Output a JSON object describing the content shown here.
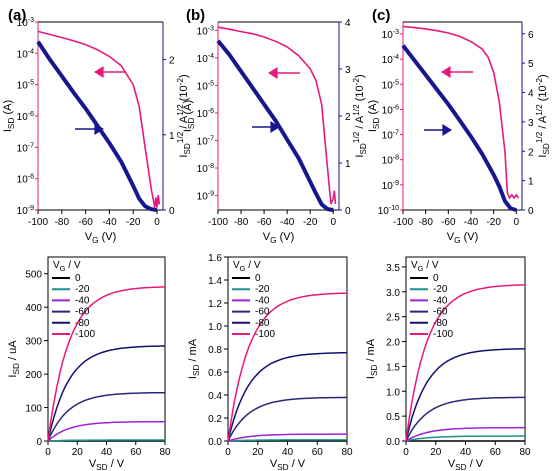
{
  "colors": {
    "transfer": "#e8197d",
    "sqrt": "#16168f",
    "series": [
      "#000000",
      "#1f8f8f",
      "#9b22d6",
      "#27277a",
      "#101070",
      "#e8197d"
    ]
  },
  "chart_data": [
    {
      "type": "line",
      "panel": "(a)",
      "xlabel": "V_G (V)",
      "ylabel": "I_SD (A)",
      "y2label": "I_SD^1/2 / A^1/2 (10^-2)",
      "xlim": [
        -100,
        5
      ],
      "ylim": [
        1e-09,
        0.001
      ],
      "yscale": "log",
      "y2lim": [
        0,
        2.5
      ],
      "xticks": [
        "-100",
        "-80",
        "-60",
        "-40",
        "-20",
        "0"
      ],
      "yticks": [
        "10-9",
        "10-8",
        "10-7",
        "10-6",
        "10-5",
        "10-4",
        "10-3"
      ],
      "y2ticks": [
        "0",
        "1",
        "2"
      ],
      "series": [
        {
          "x": [
            -100,
            -90,
            -80,
            -70,
            -60,
            -50,
            -40,
            -30,
            -20,
            -15,
            -10,
            -5,
            -3,
            -2,
            -1,
            0,
            1,
            2
          ],
          "y": [
            0.0005,
            0.0004,
            0.00032,
            0.00025,
            0.00019,
            0.00013,
            8e-05,
            4e-05,
            1e-05,
            2e-06,
            1e-07,
            5e-09,
            2e-09,
            1.2e-09,
            2.5e-09,
            1.2e-09,
            3e-09,
            1.5e-09
          ]
        },
        {
          "x": [
            -100,
            -90,
            -80,
            -70,
            -60,
            -50,
            -40,
            -30,
            -20,
            -15,
            -10,
            -5,
            0
          ],
          "y2": [
            2.24,
            2.0,
            1.78,
            1.56,
            1.35,
            1.12,
            0.89,
            0.64,
            0.32,
            0.15,
            0.05,
            0.01,
            0.0
          ]
        }
      ]
    },
    {
      "type": "line",
      "panel": "(b)",
      "xlabel": "V_G (V)",
      "ylabel": "I_SD (A)",
      "y2label": "I_SD^1/2 / A^1/2 (10^-2)",
      "xlim": [
        -100,
        5
      ],
      "ylim": [
        3e-10,
        0.002
      ],
      "yscale": "log",
      "y2lim": [
        0,
        4
      ],
      "xticks": [
        "-100",
        "-80",
        "-60",
        "-40",
        "-20",
        "0"
      ],
      "yticks": [
        "10-9",
        "10-8",
        "10-7",
        "10-6",
        "10-5",
        "10-4",
        "10-3"
      ],
      "y2ticks": [
        "0",
        "1",
        "2",
        "3",
        "4"
      ],
      "series": [
        {
          "x": [
            -100,
            -90,
            -80,
            -70,
            -60,
            -50,
            -40,
            -30,
            -20,
            -15,
            -10,
            -5,
            -2,
            0,
            1,
            2
          ],
          "y": [
            0.0013,
            0.0011,
            0.0009,
            0.00075,
            0.00057,
            0.0004,
            0.00025,
            0.00012,
            4e-05,
            1.5e-05,
            2e-06,
            1e-08,
            5e-10,
            8e-10,
            1.5e-09,
            5e-10
          ]
        },
        {
          "x": [
            -100,
            -90,
            -80,
            -70,
            -60,
            -50,
            -40,
            -30,
            -20,
            -15,
            -10,
            -5,
            0
          ],
          "y2": [
            3.6,
            3.3,
            2.95,
            2.6,
            2.25,
            1.9,
            1.5,
            1.1,
            0.6,
            0.35,
            0.12,
            0.02,
            0.0
          ]
        }
      ]
    },
    {
      "type": "line",
      "panel": "(c)",
      "xlabel": "V_G (V)",
      "ylabel": "I_SD (A)",
      "y2label": "I_SD^1/2 / A^1/2 (10^-2)",
      "xlim": [
        -100,
        5
      ],
      "ylim": [
        1e-10,
        0.003
      ],
      "yscale": "log",
      "y2lim": [
        0,
        6.4
      ],
      "xticks": [
        "-100",
        "-80",
        "-60",
        "-40",
        "-20",
        "0"
      ],
      "yticks": [
        "10-10",
        "10-9",
        "10-8",
        "10-7",
        "10-6",
        "10-5",
        "10-4",
        "10-3"
      ],
      "y2ticks": [
        "0",
        "1",
        "2",
        "3",
        "4",
        "5",
        "6"
      ],
      "series": [
        {
          "x": [
            -100,
            -90,
            -80,
            -70,
            -60,
            -50,
            -40,
            -30,
            -25,
            -20,
            -15,
            -10,
            -8,
            -6,
            -4,
            -2,
            0,
            2
          ],
          "y": [
            0.002,
            0.0018,
            0.0016,
            0.00135,
            0.0011,
            0.0008,
            0.0005,
            0.00025,
            0.00012,
            3e-05,
            2e-06,
            2e-08,
            5e-10,
            3e-10,
            4e-10,
            3e-10,
            4e-10,
            3e-10
          ]
        },
        {
          "x": [
            -100,
            -90,
            -80,
            -70,
            -60,
            -50,
            -40,
            -30,
            -20,
            -15,
            -10,
            -5,
            0
          ],
          "y2": [
            5.6,
            5.1,
            4.6,
            4.1,
            3.6,
            3.05,
            2.5,
            1.9,
            1.2,
            0.8,
            0.3,
            0.05,
            0.0
          ]
        }
      ]
    },
    {
      "type": "line",
      "panel": "bottom-left",
      "xlabel": "V_SD / V",
      "ylabel": "I_SD / uA",
      "legend_title": "V_G / V",
      "xlim": [
        0,
        80
      ],
      "ylim": [
        0,
        550
      ],
      "xticks": [
        "0",
        "20",
        "40",
        "60",
        "80"
      ],
      "yticks": [
        "0",
        "100",
        "200",
        "300",
        "400",
        "500"
      ],
      "series": [
        {
          "name": "0",
          "sat": 0
        },
        {
          "name": "-20",
          "sat": 3
        },
        {
          "name": "-40",
          "sat": 58
        },
        {
          "name": "-60",
          "sat": 145
        },
        {
          "name": "-80",
          "sat": 285
        },
        {
          "name": "-100",
          "sat": 462
        }
      ]
    },
    {
      "type": "line",
      "panel": "bottom-middle",
      "xlabel": "V_SD / V",
      "ylabel": "I_SD / mA",
      "legend_title": "V_G / V",
      "xlim": [
        0,
        80
      ],
      "ylim": [
        0,
        1.6
      ],
      "xticks": [
        "0",
        "20",
        "40",
        "60",
        "80"
      ],
      "yticks": [
        "0.0",
        "0.2",
        "0.4",
        "0.6",
        "0.8",
        "1.0",
        "1.2",
        "1.4",
        "1.6"
      ],
      "series": [
        {
          "name": "0",
          "sat": 0
        },
        {
          "name": "-20",
          "sat": 0.01
        },
        {
          "name": "-40",
          "sat": 0.06
        },
        {
          "name": "-60",
          "sat": 0.38
        },
        {
          "name": "-80",
          "sat": 0.77
        },
        {
          "name": "-100",
          "sat": 1.29
        }
      ]
    },
    {
      "type": "line",
      "panel": "bottom-right",
      "xlabel": "V_SD / V",
      "ylabel": "I_SD / mA",
      "legend_title": "V_G / V",
      "xlim": [
        0,
        80
      ],
      "ylim": [
        0,
        3.7
      ],
      "xticks": [
        "0",
        "20",
        "40",
        "60",
        "80"
      ],
      "yticks": [
        "0.0",
        "0.5",
        "1.0",
        "1.5",
        "2.0",
        "2.5",
        "3.0",
        "3.5"
      ],
      "series": [
        {
          "name": "0",
          "sat": 0
        },
        {
          "name": "-20",
          "sat": 0.1
        },
        {
          "name": "-40",
          "sat": 0.27
        },
        {
          "name": "-60",
          "sat": 0.88
        },
        {
          "name": "-80",
          "sat": 1.86
        },
        {
          "name": "-100",
          "sat": 3.15
        }
      ]
    }
  ]
}
